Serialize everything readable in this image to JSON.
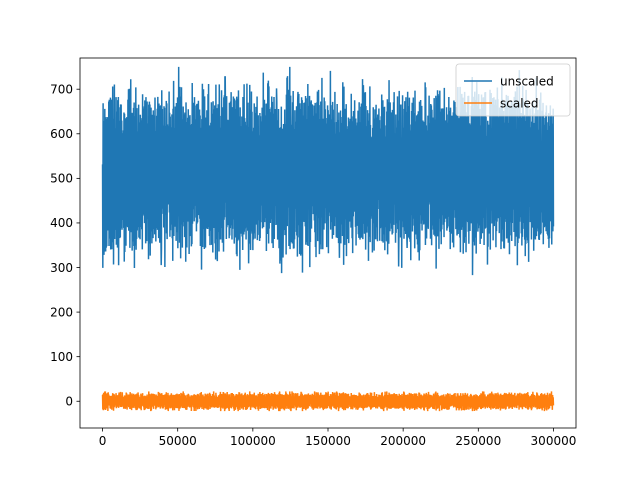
{
  "chart_data": {
    "type": "line",
    "title": "",
    "xlabel": "",
    "ylabel": "",
    "xlim": [
      -15000,
      315000
    ],
    "ylim": [
      -60,
      770
    ],
    "x_ticks": [
      0,
      50000,
      100000,
      150000,
      200000,
      250000,
      300000
    ],
    "x_tick_labels": [
      "0",
      "50000",
      "100000",
      "150000",
      "200000",
      "250000",
      "300000"
    ],
    "y_ticks": [
      0,
      100,
      200,
      300,
      400,
      500,
      600,
      700
    ],
    "y_tick_labels": [
      "0",
      "100",
      "200",
      "300",
      "400",
      "500",
      "600",
      "700"
    ],
    "grid": false,
    "legend_position": "top-right",
    "x_range": [
      0,
      300000
    ],
    "series": [
      {
        "name": "unscaled",
        "color": "#1f77b4",
        "center": 515,
        "dense_band": [
          350,
          680
        ],
        "min": 283,
        "max": 750
      },
      {
        "name": "scaled",
        "color": "#ff7f0e",
        "center": 0,
        "dense_band": [
          -18,
          18
        ],
        "min": -22,
        "max": 22
      }
    ]
  }
}
